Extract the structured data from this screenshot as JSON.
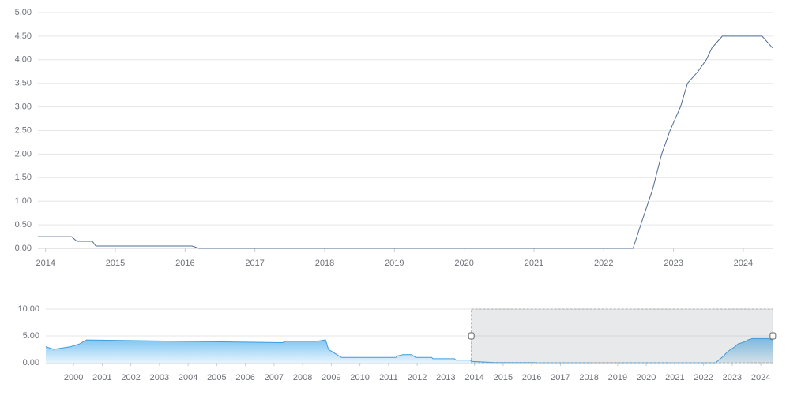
{
  "chart_data": [
    {
      "type": "line",
      "color": "#4f6b94",
      "grid": true,
      "x": [
        2013.89,
        2014.37,
        2014.45,
        2014.67,
        2014.72,
        2016.1,
        2016.2,
        2022.42,
        2022.53,
        2022.7,
        2022.83,
        2022.95,
        2023.1,
        2023.2,
        2023.35,
        2023.47,
        2023.55,
        2023.7,
        2024.27,
        2024.42
      ],
      "values": [
        0.25,
        0.25,
        0.15,
        0.15,
        0.05,
        0.05,
        0,
        0,
        0.5,
        1.25,
        2.0,
        2.5,
        3.0,
        3.5,
        3.75,
        4.0,
        4.25,
        4.5,
        4.5,
        4.25
      ],
      "xlim": [
        2013.89,
        2024.42
      ],
      "xticks": [
        2014,
        2015,
        2016,
        2017,
        2018,
        2019,
        2020,
        2021,
        2022,
        2023,
        2024
      ],
      "ylim": [
        0,
        5
      ],
      "yticks": [
        {
          "value": 0,
          "label": "0.00"
        },
        {
          "value": 0.5,
          "label": "0.50"
        },
        {
          "value": 1,
          "label": "1.00"
        },
        {
          "value": 1.5,
          "label": "1.50"
        },
        {
          "value": 2,
          "label": "2.00"
        },
        {
          "value": 2.5,
          "label": "2.50"
        },
        {
          "value": 3,
          "label": "3.00"
        },
        {
          "value": 3.5,
          "label": "3.50"
        },
        {
          "value": 4,
          "label": "4.00"
        },
        {
          "value": 4.5,
          "label": "4.50"
        },
        {
          "value": 5,
          "label": "5.00"
        }
      ]
    },
    {
      "type": "area",
      "color": "#3a9ee0",
      "grid": true,
      "x": [
        1999.03,
        1999.3,
        1999.9,
        2000.2,
        2000.45,
        2007.3,
        2007.4,
        2008.5,
        2008.8,
        2008.9,
        2009.05,
        2009.35,
        2011.25,
        2011.3,
        2011.5,
        2011.8,
        2011.95,
        2012.5,
        2012.55,
        2013.3,
        2013.35,
        2013.85,
        2013.9,
        2014.7,
        2016.1,
        2016.2,
        2022.42,
        2022.53,
        2022.7,
        2022.83,
        2022.95,
        2023.1,
        2023.2,
        2023.35,
        2023.47,
        2023.55,
        2023.7,
        2024.27,
        2024.41
      ],
      "values": [
        3.0,
        2.5,
        3.0,
        3.5,
        4.25,
        3.75,
        4.0,
        4.0,
        4.25,
        2.5,
        2.0,
        1.0,
        1.0,
        1.25,
        1.5,
        1.5,
        1.0,
        1.0,
        0.75,
        0.75,
        0.5,
        0.5,
        0.25,
        0.05,
        0.05,
        0,
        0,
        0.5,
        1.25,
        2.0,
        2.5,
        3.0,
        3.5,
        3.75,
        4.0,
        4.25,
        4.5,
        4.5,
        4.25
      ],
      "xlim": [
        1999.03,
        2024.41
      ],
      "xticks": [
        2000,
        2001,
        2002,
        2003,
        2004,
        2005,
        2006,
        2007,
        2008,
        2009,
        2010,
        2011,
        2012,
        2013,
        2014,
        2015,
        2016,
        2017,
        2018,
        2019,
        2020,
        2021,
        2022,
        2023,
        2024
      ],
      "ylim": [
        0,
        10
      ],
      "yticks": [
        {
          "value": 0,
          "label": "0.00"
        },
        {
          "value": 5,
          "label": "5.00"
        },
        {
          "value": 10,
          "label": "10.00"
        }
      ]
    }
  ]
}
